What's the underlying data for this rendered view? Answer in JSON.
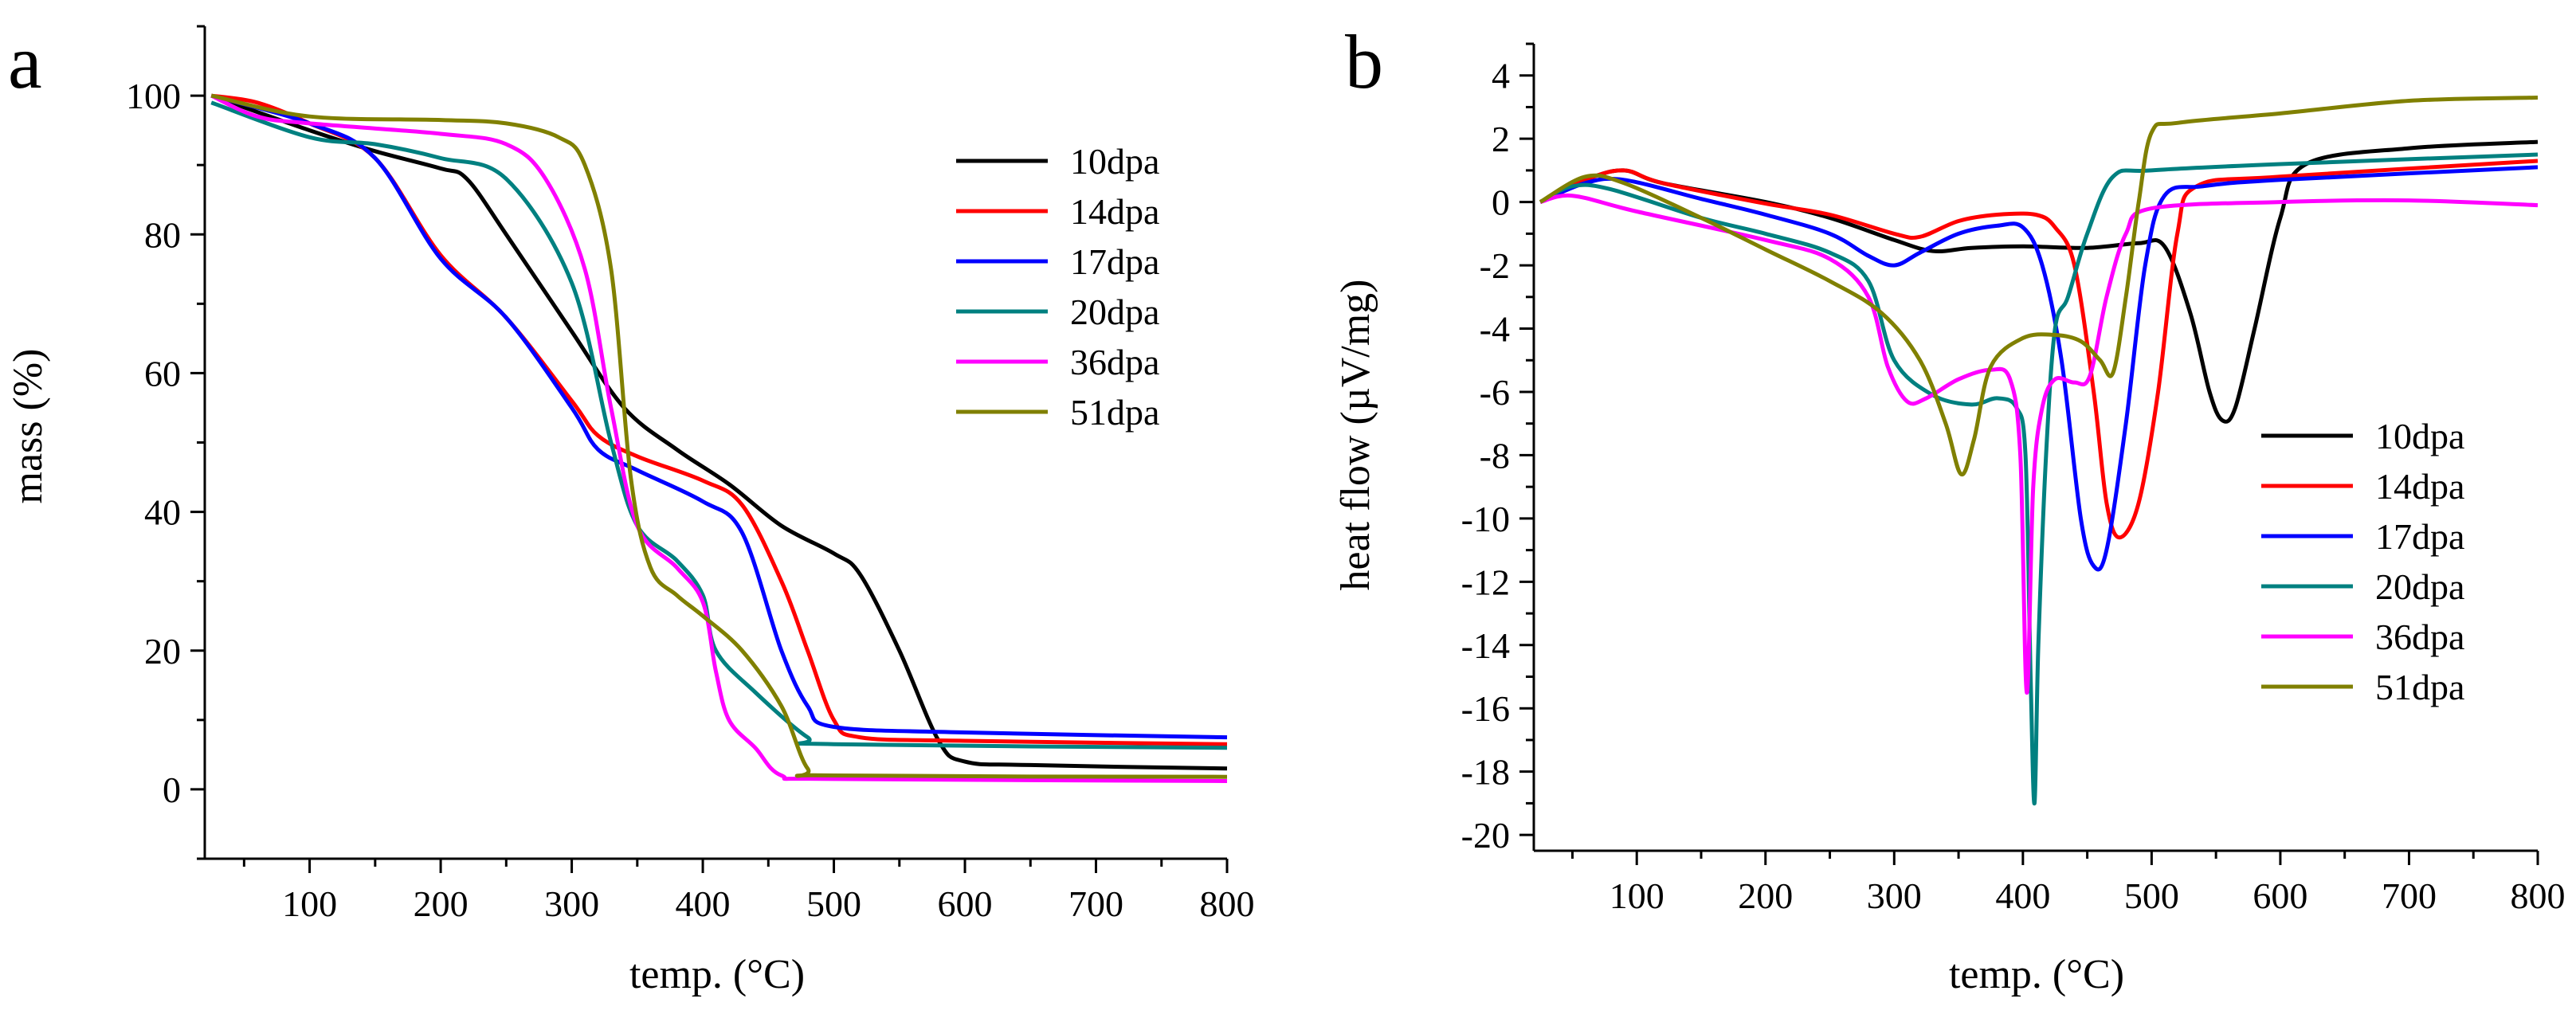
{
  "chart_data": [
    {
      "panel": "a",
      "type": "line",
      "xlabel": "temp. (°C)",
      "ylabel": "mass (%)",
      "xlim": [
        20,
        800
      ],
      "ylim": [
        -10,
        110
      ],
      "xticks": [
        100,
        200,
        300,
        400,
        500,
        600,
        700,
        800
      ],
      "yticks": [
        0,
        20,
        40,
        60,
        80,
        100
      ],
      "legend_position": "top-right",
      "series": [
        {
          "name": "10dpa",
          "color": "#000000",
          "points": [
            [
              25,
              100
            ],
            [
              100,
              95
            ],
            [
              150,
              92
            ],
            [
              200,
              89.5
            ],
            [
              220,
              88
            ],
            [
              250,
              80
            ],
            [
              300,
              66
            ],
            [
              340,
              55
            ],
            [
              380,
              49
            ],
            [
              420,
              44
            ],
            [
              460,
              38
            ],
            [
              500,
              34
            ],
            [
              520,
              31
            ],
            [
              550,
              20
            ],
            [
              580,
              7
            ],
            [
              600,
              4
            ],
            [
              650,
              3.5
            ],
            [
              800,
              3
            ]
          ]
        },
        {
          "name": "14dpa",
          "color": "#ff0000",
          "points": [
            [
              25,
              100
            ],
            [
              60,
              99
            ],
            [
              100,
              96
            ],
            [
              150,
              91
            ],
            [
              200,
              77
            ],
            [
              250,
              68
            ],
            [
              300,
              56
            ],
            [
              320,
              51
            ],
            [
              350,
              48
            ],
            [
              400,
              44.5
            ],
            [
              430,
              41
            ],
            [
              460,
              30
            ],
            [
              480,
              20
            ],
            [
              500,
              10
            ],
            [
              520,
              7.5
            ],
            [
              600,
              7
            ],
            [
              800,
              6.5
            ]
          ]
        },
        {
          "name": "17dpa",
          "color": "#0000ff",
          "points": [
            [
              25,
              100
            ],
            [
              100,
              96
            ],
            [
              150,
              91
            ],
            [
              200,
              76.5
            ],
            [
              250,
              68
            ],
            [
              300,
              55
            ],
            [
              320,
              49
            ],
            [
              350,
              46
            ],
            [
              400,
              41.5
            ],
            [
              430,
              37
            ],
            [
              460,
              20
            ],
            [
              480,
              12
            ],
            [
              500,
              9
            ],
            [
              600,
              8.2
            ],
            [
              800,
              7.5
            ]
          ]
        },
        {
          "name": "20dpa",
          "color": "#008080",
          "points": [
            [
              25,
              99
            ],
            [
              100,
              94
            ],
            [
              150,
              93
            ],
            [
              200,
              91
            ],
            [
              250,
              88
            ],
            [
              300,
              73
            ],
            [
              330,
              50
            ],
            [
              350,
              38
            ],
            [
              380,
              33
            ],
            [
              400,
              28
            ],
            [
              410,
              20
            ],
            [
              440,
              14
            ],
            [
              480,
              7.5
            ],
            [
              500,
              6.5
            ],
            [
              800,
              6
            ]
          ]
        },
        {
          "name": "36dpa",
          "color": "#ff00ff",
          "points": [
            [
              25,
              100
            ],
            [
              60,
              97
            ],
            [
              100,
              96
            ],
            [
              200,
              94.5
            ],
            [
              250,
              93
            ],
            [
              280,
              88
            ],
            [
              310,
              75
            ],
            [
              330,
              55
            ],
            [
              350,
              38
            ],
            [
              380,
              32
            ],
            [
              400,
              27
            ],
            [
              410,
              17
            ],
            [
              420,
              10
            ],
            [
              440,
              6
            ],
            [
              460,
              2
            ],
            [
              500,
              1.5
            ],
            [
              800,
              1.2
            ]
          ]
        },
        {
          "name": "51dpa",
          "color": "#808000",
          "points": [
            [
              25,
              100
            ],
            [
              100,
              97
            ],
            [
              200,
              96.5
            ],
            [
              250,
              96
            ],
            [
              290,
              94
            ],
            [
              310,
              90
            ],
            [
              330,
              75
            ],
            [
              345,
              45
            ],
            [
              360,
              32
            ],
            [
              380,
              28
            ],
            [
              400,
              25
            ],
            [
              430,
              20
            ],
            [
              460,
              12
            ],
            [
              480,
              3
            ],
            [
              500,
              2
            ],
            [
              800,
              1.8
            ]
          ]
        }
      ]
    },
    {
      "panel": "b",
      "type": "line",
      "xlabel": "temp. (°C)",
      "ylabel": "heat flow (µV/mg)",
      "xlim": [
        20,
        800
      ],
      "ylim": [
        -20.5,
        5
      ],
      "xticks": [
        100,
        200,
        300,
        400,
        500,
        600,
        700,
        800
      ],
      "yticks": [
        4,
        2,
        0,
        -2,
        -4,
        -6,
        -8,
        -10,
        -12,
        -14,
        -16,
        -18,
        -20
      ],
      "legend_position": "bottom-right",
      "series": [
        {
          "name": "10dpa",
          "color": "#000000",
          "points": [
            [
              25,
              0
            ],
            [
              60,
              0.7
            ],
            [
              90,
              1
            ],
            [
              120,
              0.6
            ],
            [
              200,
              0
            ],
            [
              250,
              -0.5
            ],
            [
              300,
              -1.2
            ],
            [
              330,
              -1.55
            ],
            [
              360,
              -1.45
            ],
            [
              400,
              -1.4
            ],
            [
              450,
              -1.45
            ],
            [
              490,
              -1.3
            ],
            [
              510,
              -1.4
            ],
            [
              530,
              -3.5
            ],
            [
              545,
              -6
            ],
            [
              555,
              -6.9
            ],
            [
              565,
              -6.5
            ],
            [
              580,
              -4
            ],
            [
              600,
              -0.5
            ],
            [
              620,
              1.2
            ],
            [
              700,
              1.7
            ],
            [
              800,
              1.9
            ]
          ]
        },
        {
          "name": "14dpa",
          "color": "#ff0000",
          "points": [
            [
              25,
              0
            ],
            [
              60,
              0.7
            ],
            [
              90,
              1
            ],
            [
              120,
              0.6
            ],
            [
              200,
              -0.05
            ],
            [
              250,
              -0.4
            ],
            [
              300,
              -1
            ],
            [
              320,
              -1.1
            ],
            [
              350,
              -0.6
            ],
            [
              380,
              -0.4
            ],
            [
              410,
              -0.4
            ],
            [
              425,
              -0.8
            ],
            [
              440,
              -2
            ],
            [
              455,
              -6
            ],
            [
              465,
              -9.5
            ],
            [
              475,
              -10.6
            ],
            [
              490,
              -9.5
            ],
            [
              505,
              -6
            ],
            [
              520,
              -1
            ],
            [
              535,
              0.5
            ],
            [
              600,
              0.8
            ],
            [
              800,
              1.3
            ]
          ]
        },
        {
          "name": "17dpa",
          "color": "#0000ff",
          "points": [
            [
              25,
              0
            ],
            [
              60,
              0.6
            ],
            [
              90,
              0.7
            ],
            [
              150,
              0.1
            ],
            [
              200,
              -0.4
            ],
            [
              250,
              -1
            ],
            [
              280,
              -1.7
            ],
            [
              300,
              -2
            ],
            [
              320,
              -1.6
            ],
            [
              350,
              -1
            ],
            [
              380,
              -0.75
            ],
            [
              400,
              -0.8
            ],
            [
              415,
              -2
            ],
            [
              430,
              -5
            ],
            [
              445,
              -10
            ],
            [
              455,
              -11.5
            ],
            [
              465,
              -11
            ],
            [
              480,
              -7
            ],
            [
              495,
              -2
            ],
            [
              510,
              0.2
            ],
            [
              540,
              0.5
            ],
            [
              600,
              0.7
            ],
            [
              800,
              1.1
            ]
          ]
        },
        {
          "name": "20dpa",
          "color": "#008080",
          "points": [
            [
              25,
              0
            ],
            [
              50,
              0.5
            ],
            [
              80,
              0.4
            ],
            [
              150,
              -0.5
            ],
            [
              200,
              -1
            ],
            [
              250,
              -1.6
            ],
            [
              280,
              -2.5
            ],
            [
              300,
              -5
            ],
            [
              330,
              -6.1
            ],
            [
              360,
              -6.4
            ],
            [
              380,
              -6.2
            ],
            [
              395,
              -6.5
            ],
            [
              402,
              -8
            ],
            [
              406,
              -15
            ],
            [
              409,
              -19
            ],
            [
              412,
              -14
            ],
            [
              418,
              -8
            ],
            [
              425,
              -4
            ],
            [
              435,
              -3
            ],
            [
              450,
              -1
            ],
            [
              470,
              0.8
            ],
            [
              500,
              1
            ],
            [
              600,
              1.2
            ],
            [
              800,
              1.5
            ]
          ]
        },
        {
          "name": "36dpa",
          "color": "#ff00ff",
          "points": [
            [
              25,
              0
            ],
            [
              50,
              0.2
            ],
            [
              100,
              -0.3
            ],
            [
              200,
              -1.2
            ],
            [
              250,
              -1.8
            ],
            [
              280,
              -3
            ],
            [
              295,
              -5.2
            ],
            [
              310,
              -6.3
            ],
            [
              325,
              -6.2
            ],
            [
              350,
              -5.6
            ],
            [
              375,
              -5.3
            ],
            [
              390,
              -5.6
            ],
            [
              398,
              -8
            ],
            [
              403,
              -15.5
            ],
            [
              408,
              -9
            ],
            [
              415,
              -6.5
            ],
            [
              425,
              -5.6
            ],
            [
              440,
              -5.7
            ],
            [
              452,
              -5.5
            ],
            [
              465,
              -3
            ],
            [
              480,
              -1
            ],
            [
              500,
              -0.2
            ],
            [
              600,
              0
            ],
            [
              700,
              0.05
            ],
            [
              800,
              -0.1
            ]
          ]
        },
        {
          "name": "51dpa",
          "color": "#808000",
          "points": [
            [
              25,
              0
            ],
            [
              60,
              0.8
            ],
            [
              90,
              0.6
            ],
            [
              150,
              -0.5
            ],
            [
              200,
              -1.5
            ],
            [
              250,
              -2.5
            ],
            [
              290,
              -3.5
            ],
            [
              320,
              -5
            ],
            [
              340,
              -7
            ],
            [
              352,
              -8.6
            ],
            [
              362,
              -7.5
            ],
            [
              375,
              -5.2
            ],
            [
              400,
              -4.3
            ],
            [
              425,
              -4.2
            ],
            [
              445,
              -4.4
            ],
            [
              460,
              -5
            ],
            [
              470,
              -5.4
            ],
            [
              480,
              -3
            ],
            [
              490,
              0
            ],
            [
              500,
              2.2
            ],
            [
              520,
              2.5
            ],
            [
              600,
              2.8
            ],
            [
              700,
              3.2
            ],
            [
              800,
              3.3
            ]
          ]
        }
      ]
    }
  ]
}
